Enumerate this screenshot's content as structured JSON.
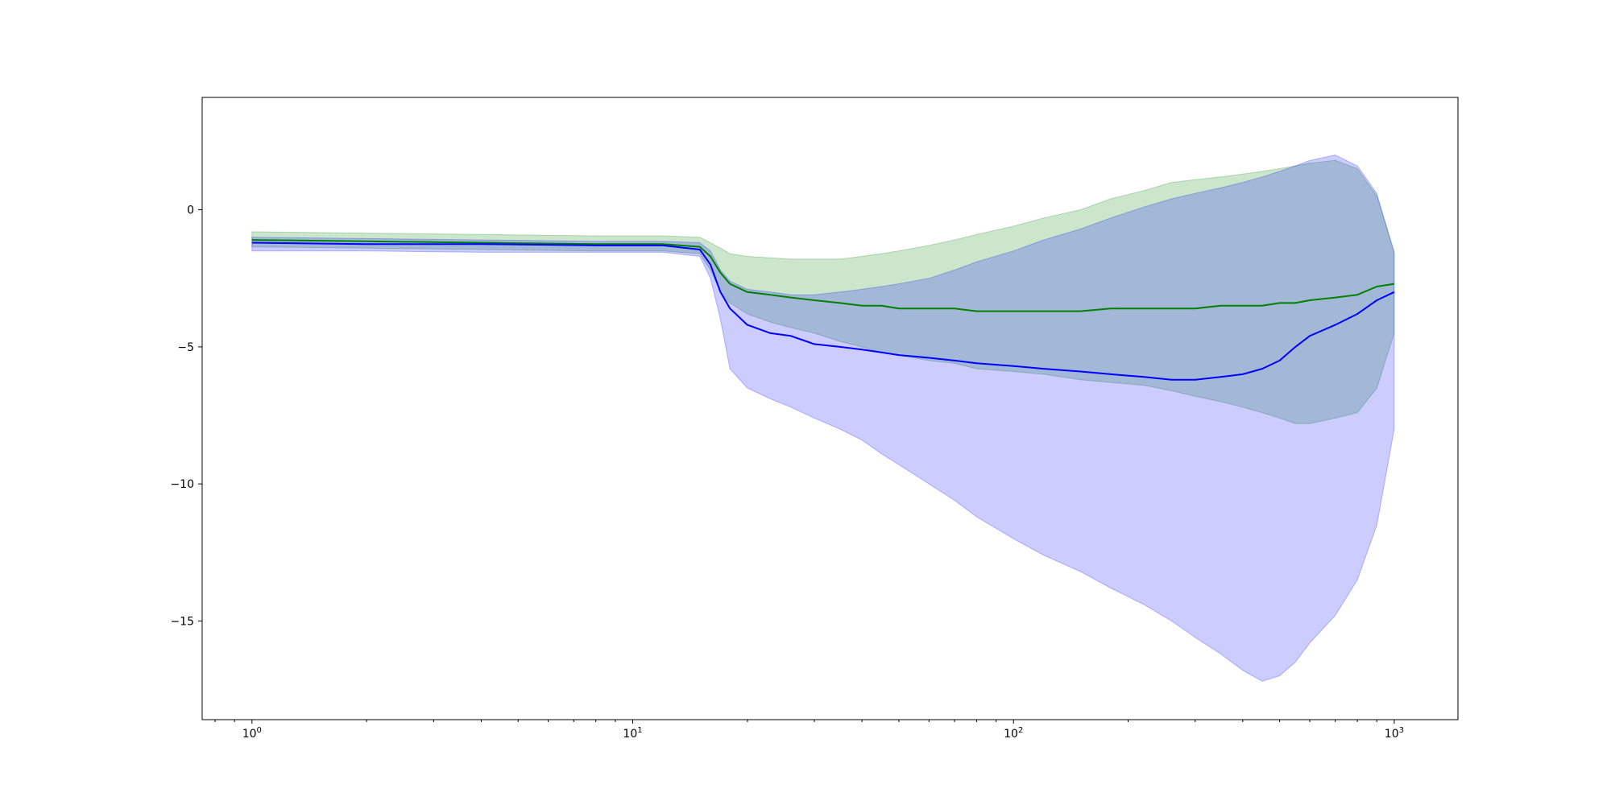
{
  "chart_data": {
    "type": "line",
    "title": "",
    "xlabel": "",
    "ylabel": "",
    "x_scale": "log",
    "xlim": [
      0.74,
      1470
    ],
    "ylim": [
      -18.6,
      4.1
    ],
    "grid": false,
    "legend": "none",
    "x_ticks": [
      {
        "value": 1,
        "base": "10",
        "exp": "0"
      },
      {
        "value": 10,
        "base": "10",
        "exp": "1"
      },
      {
        "value": 100,
        "base": "10",
        "exp": "2"
      },
      {
        "value": 1000,
        "base": "10",
        "exp": "3"
      }
    ],
    "y_ticks": [
      {
        "value": 0,
        "label": "0"
      },
      {
        "value": -5,
        "label": "−5"
      },
      {
        "value": -10,
        "label": "−10"
      },
      {
        "value": -15,
        "label": "−15"
      }
    ],
    "series": [
      {
        "color": "#008000",
        "band_color": "#008000",
        "band_opacity": 0.2,
        "x": [
          1,
          2,
          4,
          8,
          12,
          15,
          16,
          17,
          18,
          20,
          23,
          26,
          30,
          35,
          40,
          45,
          50,
          60,
          70,
          80,
          100,
          120,
          150,
          180,
          220,
          260,
          300,
          350,
          400,
          450,
          500,
          550,
          600,
          700,
          800,
          900,
          1000
        ],
        "y": [
          -1.1,
          -1.15,
          -1.2,
          -1.25,
          -1.25,
          -1.35,
          -1.7,
          -2.3,
          -2.7,
          -3.0,
          -3.1,
          -3.2,
          -3.3,
          -3.4,
          -3.5,
          -3.5,
          -3.6,
          -3.6,
          -3.6,
          -3.7,
          -3.7,
          -3.7,
          -3.7,
          -3.6,
          -3.6,
          -3.6,
          -3.6,
          -3.5,
          -3.5,
          -3.5,
          -3.4,
          -3.4,
          -3.3,
          -3.2,
          -3.1,
          -2.8,
          -2.7
        ],
        "upper": [
          -0.8,
          -0.85,
          -0.9,
          -0.95,
          -0.95,
          -1.0,
          -1.2,
          -1.4,
          -1.6,
          -1.7,
          -1.75,
          -1.8,
          -1.8,
          -1.8,
          -1.7,
          -1.6,
          -1.5,
          -1.3,
          -1.1,
          -0.9,
          -0.6,
          -0.3,
          0.0,
          0.4,
          0.7,
          1.0,
          1.1,
          1.2,
          1.3,
          1.4,
          1.5,
          1.6,
          1.7,
          1.8,
          1.5,
          0.5,
          -1.5
        ],
        "lower": [
          -1.35,
          -1.4,
          -1.45,
          -1.5,
          -1.5,
          -1.6,
          -2.2,
          -3.0,
          -3.4,
          -3.8,
          -4.1,
          -4.3,
          -4.5,
          -4.8,
          -5.0,
          -5.2,
          -5.3,
          -5.5,
          -5.6,
          -5.8,
          -5.9,
          -6.0,
          -6.2,
          -6.3,
          -6.4,
          -6.6,
          -6.8,
          -7.0,
          -7.2,
          -7.4,
          -7.6,
          -7.8,
          -7.8,
          -7.6,
          -7.4,
          -6.5,
          -4.5
        ]
      },
      {
        "color": "#0000ff",
        "band_color": "#0000ff",
        "band_opacity": 0.2,
        "x": [
          1,
          2,
          4,
          8,
          12,
          15,
          16,
          17,
          18,
          20,
          23,
          26,
          30,
          35,
          40,
          45,
          50,
          60,
          70,
          80,
          100,
          120,
          150,
          180,
          220,
          260,
          300,
          350,
          400,
          450,
          500,
          550,
          600,
          700,
          800,
          900,
          1000
        ],
        "y": [
          -1.2,
          -1.25,
          -1.25,
          -1.3,
          -1.3,
          -1.45,
          -2.0,
          -3.0,
          -3.6,
          -4.2,
          -4.5,
          -4.6,
          -4.9,
          -5.0,
          -5.1,
          -5.2,
          -5.3,
          -5.4,
          -5.5,
          -5.6,
          -5.7,
          -5.8,
          -5.9,
          -6.0,
          -6.1,
          -6.2,
          -6.2,
          -6.1,
          -6.0,
          -5.8,
          -5.5,
          -5.0,
          -4.6,
          -4.2,
          -3.8,
          -3.3,
          -3.0
        ],
        "upper": [
          -1.0,
          -1.05,
          -1.1,
          -1.15,
          -1.15,
          -1.2,
          -1.5,
          -2.2,
          -2.6,
          -2.9,
          -3.0,
          -3.1,
          -3.1,
          -3.0,
          -2.9,
          -2.8,
          -2.7,
          -2.5,
          -2.2,
          -1.9,
          -1.5,
          -1.1,
          -0.7,
          -0.3,
          0.1,
          0.4,
          0.6,
          0.8,
          1.0,
          1.2,
          1.4,
          1.6,
          1.8,
          2.0,
          1.6,
          0.6,
          -1.6
        ],
        "lower": [
          -1.5,
          -1.5,
          -1.55,
          -1.55,
          -1.55,
          -1.7,
          -2.5,
          -4.0,
          -5.8,
          -6.5,
          -6.9,
          -7.2,
          -7.6,
          -8.0,
          -8.4,
          -8.9,
          -9.3,
          -10.0,
          -10.6,
          -11.2,
          -12.0,
          -12.6,
          -13.2,
          -13.8,
          -14.4,
          -15.0,
          -15.6,
          -16.2,
          -16.8,
          -17.2,
          -17.0,
          -16.5,
          -15.8,
          -14.8,
          -13.5,
          -11.5,
          -8.0
        ]
      }
    ]
  }
}
